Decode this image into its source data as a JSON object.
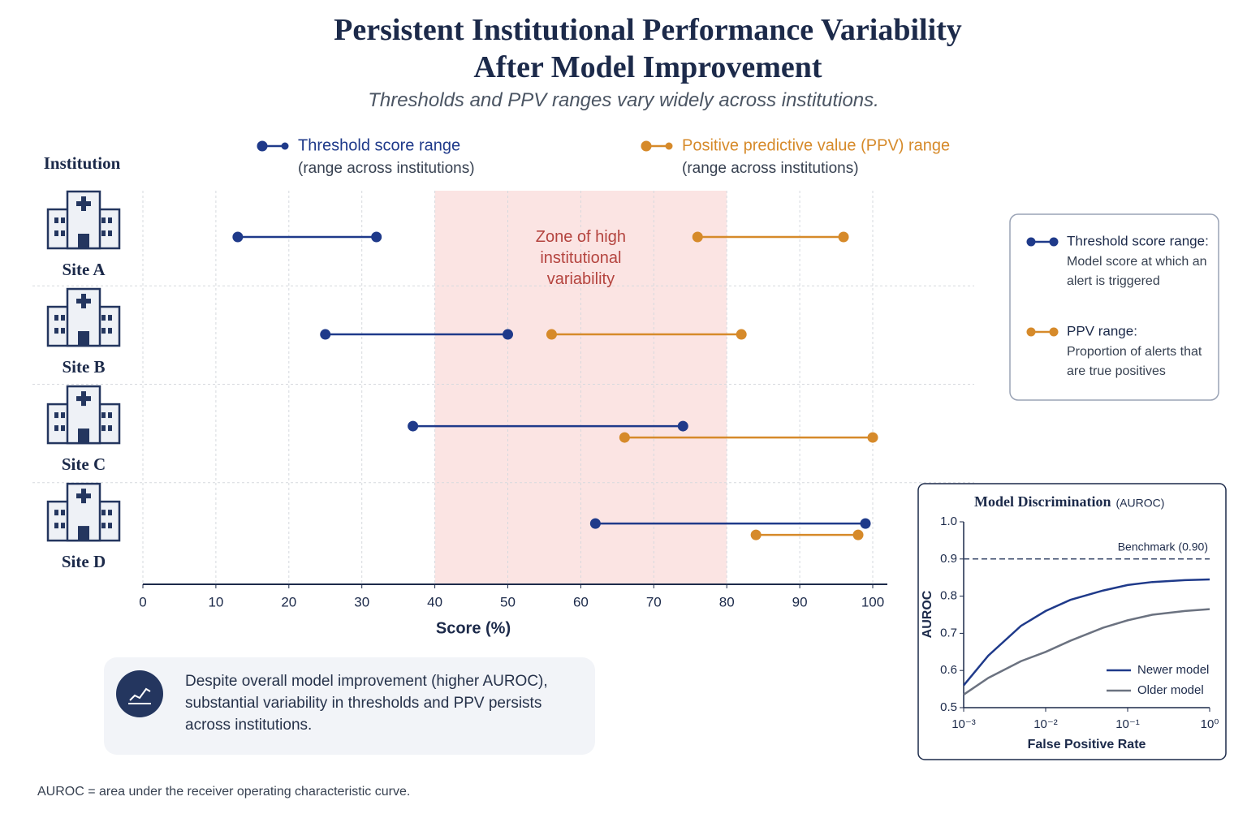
{
  "header": {
    "title": [
      "Persistent Institutional Performance Variability",
      "After Model Improvement"
    ],
    "subtitle": "Thresholds and PPV ranges vary widely across institutions."
  },
  "chart_data": [
    {
      "type": "dumbbell",
      "y_label": "Institution",
      "categories": [
        "Site A",
        "Site B",
        "Site C",
        "Site D"
      ],
      "series": [
        {
          "name": "Threshold score range",
          "note": "(range across institutions)",
          "color": "#1f3a8a",
          "low": [
            13,
            25,
            37,
            62
          ],
          "high": [
            32,
            50,
            74,
            99
          ]
        },
        {
          "name": "Positive predictive value (PPV) range",
          "note": "(range across institutions)",
          "color": "#d68a2a",
          "low": [
            76,
            56,
            66,
            84
          ],
          "high": [
            96,
            82,
            100,
            98
          ]
        }
      ],
      "xlim": [
        0,
        100
      ],
      "xticks": [
        0,
        10,
        20,
        30,
        40,
        50,
        60,
        70,
        80,
        90,
        100
      ],
      "x_label": "Score (%)",
      "grid": true,
      "zone": {
        "label": "Zone of high institutional variability",
        "range": [
          40,
          80
        ],
        "color": "#fbe4e3"
      },
      "key": [
        {
          "label": "Threshold score range:",
          "text": "Model score at which an alert is triggered"
        },
        {
          "label": "PPV range:",
          "text": "Proportion of alerts that are true positives"
        }
      ]
    },
    {
      "type": "line",
      "title": "Model Discrimination",
      "title_note": "(AUROC)",
      "x_label": "False Positive Rate",
      "y_label": "AUROC",
      "x_scale": "log",
      "xlim": [
        0.001,
        1
      ],
      "xticks": [
        {
          "value": 0.001,
          "label": "10⁻³"
        },
        {
          "value": 0.01,
          "label": "10⁻²"
        },
        {
          "value": 0.1,
          "label": "10⁻¹"
        },
        {
          "value": 1,
          "label": "10⁰"
        }
      ],
      "ylim": [
        0.5,
        1
      ],
      "yticks": [
        0.5,
        0.6,
        0.7,
        0.8,
        0.9,
        {
          "value": 1,
          "label": "1.0"
        }
      ],
      "reference": {
        "value": 0.9,
        "label": "Benchmark (0.90)"
      },
      "x": [
        0.001,
        0.002,
        0.005,
        0.01,
        0.02,
        0.05,
        0.1,
        0.2,
        0.5,
        1
      ],
      "series": [
        {
          "name": "Newer model",
          "color": "#1f3a8a",
          "values": [
            0.56,
            0.64,
            0.72,
            0.76,
            0.79,
            0.815,
            0.83,
            0.838,
            0.843,
            0.845
          ]
        },
        {
          "name": "Older model",
          "color": "#6b7280",
          "values": [
            0.535,
            0.58,
            0.625,
            0.65,
            0.68,
            0.715,
            0.735,
            0.75,
            0.76,
            0.765
          ]
        }
      ],
      "legend": "lower right"
    }
  ],
  "callout": {
    "text": "Despite overall model improvement (higher AUROC), substantial variability in thresholds and PPV persists across institutions."
  },
  "footnote": "AUROC = area under the receiver operating characteristic curve."
}
